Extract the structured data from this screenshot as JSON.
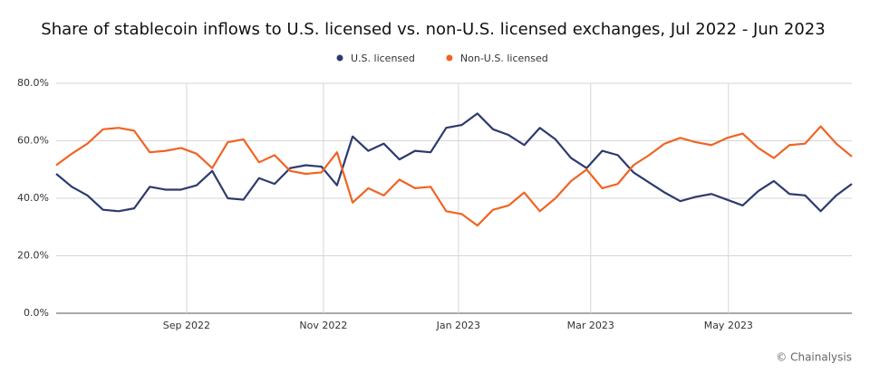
{
  "chart_data": {
    "type": "line",
    "title": "Share of stablecoin inflows to U.S. licensed vs. non-U.S. licensed exchanges, Jul 2022 - Jun 2023",
    "source": "© Chainalysis",
    "x": [
      0,
      1,
      2,
      3,
      4,
      5,
      6,
      7,
      8,
      9,
      10,
      11,
      12,
      13,
      14,
      15,
      16,
      17,
      18,
      19,
      20,
      21,
      22,
      23,
      24,
      25,
      26,
      27,
      28,
      29,
      30,
      31,
      32,
      33,
      34,
      35,
      36,
      37,
      38,
      39,
      40,
      41,
      42,
      43,
      44,
      45,
      46,
      47,
      48,
      49,
      50,
      51
    ],
    "xlim": [
      0,
      51
    ],
    "xticks": [
      {
        "value": 8.36,
        "label": "Sep 2022"
      },
      {
        "value": 17.13,
        "label": "Nov 2022"
      },
      {
        "value": 25.78,
        "label": "Jan 2023"
      },
      {
        "value": 34.26,
        "label": "Mar 2023"
      },
      {
        "value": 43.09,
        "label": "May 2023"
      }
    ],
    "ylim": [
      0,
      80
    ],
    "yticks": [
      {
        "value": 0,
        "label": "0.0%"
      },
      {
        "value": 20,
        "label": "20.0%"
      },
      {
        "value": 40,
        "label": "40.0%"
      },
      {
        "value": 60,
        "label": "60.0%"
      },
      {
        "value": 80,
        "label": "80.0%"
      }
    ],
    "grid": true,
    "legend": "top",
    "series": [
      {
        "name": "U.S. licensed",
        "color": "#2e3a6e",
        "values": [
          48.5,
          44,
          41,
          36,
          35.5,
          36.5,
          44,
          43,
          43,
          44.5,
          49.5,
          40,
          39.5,
          47,
          45,
          50.5,
          51.5,
          51,
          44.5,
          61.5,
          56.5,
          59,
          53.5,
          56.5,
          56,
          64.5,
          65.5,
          69.5,
          64,
          62,
          58.5,
          64.5,
          60.5,
          54,
          50.5,
          56.5,
          55,
          49,
          45.5,
          42,
          39,
          40.5,
          41.5,
          39.5,
          37.5,
          42.5,
          46,
          41.5,
          41,
          35.5,
          41,
          45
        ]
      },
      {
        "name": "Non-U.S. licensed",
        "color": "#f06423",
        "values": [
          51.5,
          55.5,
          59,
          64,
          64.5,
          63.5,
          56,
          56.5,
          57.5,
          55.5,
          50.5,
          59.5,
          60.5,
          52.5,
          55,
          49.5,
          48.5,
          49,
          56,
          38.5,
          43.5,
          41,
          46.5,
          43.5,
          44,
          35.5,
          34.5,
          30.5,
          36,
          37.5,
          42,
          35.5,
          40,
          46,
          50,
          43.5,
          45,
          51.5,
          55,
          59,
          61,
          59.5,
          58.5,
          61,
          62.5,
          57.5,
          54,
          58.5,
          59,
          65,
          59,
          54.5
        ]
      }
    ]
  }
}
